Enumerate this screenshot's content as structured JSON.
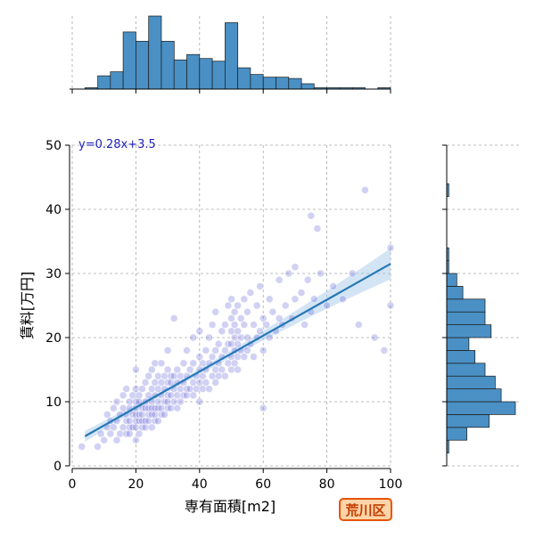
{
  "chart_data": {
    "type": "scatter",
    "title": "",
    "xlabel": "専有面積[m2]",
    "ylabel": "賃料[万円]",
    "xlim": [
      0,
      100
    ],
    "ylim": [
      0,
      50
    ],
    "xticks": [
      "0",
      "20",
      "40",
      "60",
      "80",
      "100"
    ],
    "yticks": [
      "0",
      "10",
      "20",
      "30",
      "40",
      "50"
    ],
    "grid": true,
    "regression": {
      "equation": "y=0.28x+3.5",
      "slope": 0.28,
      "intercept": 3.5,
      "x_range": [
        4,
        100
      ],
      "confidence_band": true
    },
    "x_histogram": {
      "bin_edges": [
        0,
        4,
        8,
        12,
        16,
        20,
        24,
        28,
        32,
        36,
        40,
        44,
        48,
        52,
        56,
        60,
        64,
        68,
        72,
        76,
        80,
        84,
        88,
        92,
        96,
        100
      ],
      "counts": [
        0,
        1,
        10,
        13,
        43,
        36,
        55,
        36,
        22,
        26,
        23,
        21,
        50,
        16,
        11,
        9,
        9,
        8,
        4,
        1,
        1,
        1,
        1,
        0,
        1
      ]
    },
    "y_histogram": {
      "bin_edges": [
        2,
        4,
        6,
        8,
        10,
        12,
        14,
        16,
        18,
        20,
        22,
        24,
        26,
        28,
        30,
        32,
        34,
        36,
        38,
        40,
        42,
        44
      ],
      "counts": [
        1,
        10,
        21,
        34,
        27,
        24,
        19,
        14,
        11,
        22,
        19,
        19,
        8,
        5,
        1,
        1,
        0,
        0,
        0,
        0,
        1
      ]
    },
    "points": [
      [
        3,
        3
      ],
      [
        8,
        3
      ],
      [
        9,
        5
      ],
      [
        10,
        4
      ],
      [
        11,
        6
      ],
      [
        11,
        8
      ],
      [
        12,
        5
      ],
      [
        12,
        7
      ],
      [
        13,
        6
      ],
      [
        13,
        9
      ],
      [
        14,
        4
      ],
      [
        14,
        7
      ],
      [
        14,
        10
      ],
      [
        15,
        5
      ],
      [
        15,
        8
      ],
      [
        16,
        6
      ],
      [
        16,
        9
      ],
      [
        16,
        11
      ],
      [
        17,
        5
      ],
      [
        17,
        7
      ],
      [
        17,
        8
      ],
      [
        17,
        12
      ],
      [
        18,
        5
      ],
      [
        18,
        6
      ],
      [
        18,
        7
      ],
      [
        18,
        9
      ],
      [
        18,
        10
      ],
      [
        19,
        6
      ],
      [
        19,
        8
      ],
      [
        19,
        11
      ],
      [
        20,
        4
      ],
      [
        20,
        6
      ],
      [
        20,
        7
      ],
      [
        20,
        8
      ],
      [
        20,
        9
      ],
      [
        20,
        10
      ],
      [
        20,
        12
      ],
      [
        20,
        15
      ],
      [
        21,
        5
      ],
      [
        21,
        7
      ],
      [
        21,
        8
      ],
      [
        21,
        10
      ],
      [
        21,
        11
      ],
      [
        22,
        6
      ],
      [
        22,
        7
      ],
      [
        22,
        8
      ],
      [
        22,
        9
      ],
      [
        22,
        12
      ],
      [
        23,
        6
      ],
      [
        23,
        7
      ],
      [
        23,
        9
      ],
      [
        23,
        10
      ],
      [
        23,
        13
      ],
      [
        24,
        7
      ],
      [
        24,
        8
      ],
      [
        24,
        9
      ],
      [
        24,
        11
      ],
      [
        24,
        14
      ],
      [
        25,
        6
      ],
      [
        25,
        8
      ],
      [
        25,
        9
      ],
      [
        25,
        10
      ],
      [
        25,
        12
      ],
      [
        25,
        15
      ],
      [
        26,
        7
      ],
      [
        26,
        8
      ],
      [
        26,
        9
      ],
      [
        26,
        11
      ],
      [
        26,
        13
      ],
      [
        26,
        16
      ],
      [
        27,
        7
      ],
      [
        27,
        9
      ],
      [
        27,
        10
      ],
      [
        27,
        12
      ],
      [
        27,
        14
      ],
      [
        28,
        8
      ],
      [
        28,
        9
      ],
      [
        28,
        11
      ],
      [
        28,
        13
      ],
      [
        28,
        16
      ],
      [
        29,
        8
      ],
      [
        29,
        10
      ],
      [
        29,
        12
      ],
      [
        29,
        14
      ],
      [
        30,
        9
      ],
      [
        30,
        10
      ],
      [
        30,
        11
      ],
      [
        30,
        13
      ],
      [
        30,
        15
      ],
      [
        30,
        18
      ],
      [
        31,
        9
      ],
      [
        31,
        11
      ],
      [
        31,
        13
      ],
      [
        31,
        14
      ],
      [
        32,
        10
      ],
      [
        32,
        12
      ],
      [
        32,
        14
      ],
      [
        32,
        23
      ],
      [
        33,
        9
      ],
      [
        33,
        11
      ],
      [
        33,
        13
      ],
      [
        33,
        15
      ],
      [
        34,
        10
      ],
      [
        34,
        12
      ],
      [
        34,
        14
      ],
      [
        35,
        11
      ],
      [
        35,
        13
      ],
      [
        35,
        16
      ],
      [
        36,
        11
      ],
      [
        36,
        12
      ],
      [
        36,
        14
      ],
      [
        36,
        18
      ],
      [
        37,
        12
      ],
      [
        37,
        15
      ],
      [
        38,
        11
      ],
      [
        38,
        13
      ],
      [
        38,
        16
      ],
      [
        38,
        20
      ],
      [
        39,
        12
      ],
      [
        39,
        14
      ],
      [
        40,
        10
      ],
      [
        40,
        13
      ],
      [
        40,
        15
      ],
      [
        40,
        17
      ],
      [
        40,
        21
      ],
      [
        41,
        12
      ],
      [
        41,
        14
      ],
      [
        41,
        16
      ],
      [
        42,
        13
      ],
      [
        42,
        15
      ],
      [
        42,
        18
      ],
      [
        43,
        12
      ],
      [
        43,
        16
      ],
      [
        43,
        20
      ],
      [
        44,
        14
      ],
      [
        44,
        17
      ],
      [
        44,
        22
      ],
      [
        45,
        13
      ],
      [
        45,
        15
      ],
      [
        45,
        18
      ],
      [
        45,
        24
      ],
      [
        46,
        14
      ],
      [
        46,
        16
      ],
      [
        46,
        19
      ],
      [
        47,
        15
      ],
      [
        47,
        17
      ],
      [
        47,
        21
      ],
      [
        48,
        14
      ],
      [
        48,
        18
      ],
      [
        48,
        22
      ],
      [
        49,
        16
      ],
      [
        49,
        19
      ],
      [
        49,
        25
      ],
      [
        50,
        15
      ],
      [
        50,
        17
      ],
      [
        50,
        19
      ],
      [
        50,
        21
      ],
      [
        50,
        23
      ],
      [
        50,
        26
      ],
      [
        51,
        16
      ],
      [
        51,
        18
      ],
      [
        51,
        20
      ],
      [
        51,
        22
      ],
      [
        51,
        24
      ],
      [
        52,
        15
      ],
      [
        52,
        17
      ],
      [
        52,
        19
      ],
      [
        52,
        21
      ],
      [
        52,
        25
      ],
      [
        53,
        18
      ],
      [
        53,
        20
      ],
      [
        53,
        23
      ],
      [
        54,
        17
      ],
      [
        54,
        22
      ],
      [
        54,
        26
      ],
      [
        55,
        18
      ],
      [
        55,
        20
      ],
      [
        55,
        24
      ],
      [
        56,
        19
      ],
      [
        56,
        27
      ],
      [
        57,
        17
      ],
      [
        57,
        22
      ],
      [
        58,
        20
      ],
      [
        58,
        25
      ],
      [
        59,
        21
      ],
      [
        59,
        28
      ],
      [
        60,
        9
      ],
      [
        60,
        18
      ],
      [
        60,
        23
      ],
      [
        61,
        22
      ],
      [
        62,
        20
      ],
      [
        62,
        26
      ],
      [
        63,
        24
      ],
      [
        64,
        21
      ],
      [
        65,
        23
      ],
      [
        65,
        29
      ],
      [
        66,
        22
      ],
      [
        67,
        25
      ],
      [
        68,
        30
      ],
      [
        69,
        23
      ],
      [
        70,
        26
      ],
      [
        70,
        31
      ],
      [
        72,
        27
      ],
      [
        73,
        22
      ],
      [
        74,
        29
      ],
      [
        75,
        24
      ],
      [
        75,
        39
      ],
      [
        76,
        26
      ],
      [
        77,
        37
      ],
      [
        78,
        30
      ],
      [
        80,
        25
      ],
      [
        82,
        28
      ],
      [
        85,
        26
      ],
      [
        88,
        30
      ],
      [
        90,
        22
      ],
      [
        92,
        43
      ],
      [
        95,
        20
      ],
      [
        98,
        18
      ],
      [
        100,
        25
      ],
      [
        100,
        34
      ]
    ]
  },
  "badge": {
    "label": "荒川区"
  }
}
